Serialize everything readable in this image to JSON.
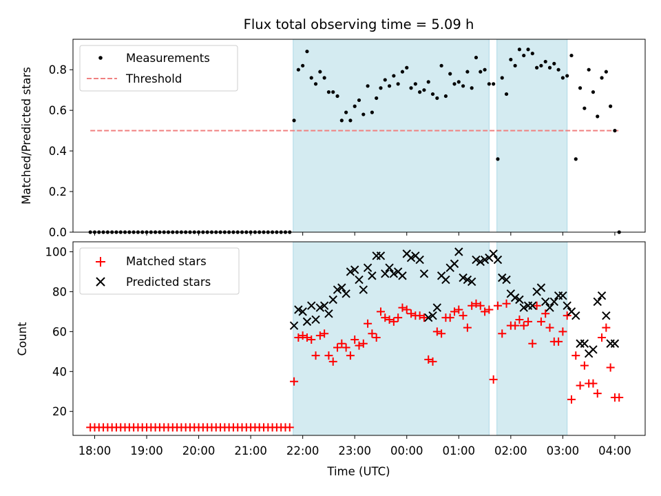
{
  "figure": {
    "title": "Flux total observing time = 5.09 h",
    "xlabel": "Time (UTC)"
  },
  "chart_data": [
    {
      "type": "scatter",
      "ylabel": "Matched/Predicted stars",
      "xlim": [
        "17:35",
        "04:35"
      ],
      "ylim": [
        0,
        0.95
      ],
      "yticks": [
        0.0,
        0.2,
        0.4,
        0.6,
        0.8
      ],
      "ytick_labels": [
        "0.0",
        "0.2",
        "0.4",
        "0.6",
        "0.8"
      ],
      "legend": {
        "position": "top-left",
        "entries": [
          "Measurements",
          "Threshold"
        ]
      },
      "colors": {
        "measurements": "#000000",
        "threshold": "#f08080",
        "shade": "#d4ebf1",
        "shade_edge": "#add8e6"
      },
      "shaded_ranges": [
        [
          "21:49",
          "01:35"
        ],
        [
          "01:44",
          "03:05"
        ]
      ],
      "threshold": {
        "name": "Threshold",
        "value": 0.5,
        "x": [
          "17:55",
          "04:05"
        ]
      },
      "series": [
        {
          "name": "Measurements",
          "x": [
            "17:55",
            "18:00",
            "18:05",
            "18:10",
            "18:15",
            "18:20",
            "18:25",
            "18:30",
            "18:35",
            "18:40",
            "18:45",
            "18:50",
            "18:55",
            "19:00",
            "19:05",
            "19:10",
            "19:15",
            "19:20",
            "19:25",
            "19:30",
            "19:35",
            "19:40",
            "19:45",
            "19:50",
            "19:55",
            "20:00",
            "20:05",
            "20:10",
            "20:15",
            "20:20",
            "20:25",
            "20:30",
            "20:35",
            "20:40",
            "20:45",
            "20:50",
            "20:55",
            "21:00",
            "21:05",
            "21:10",
            "21:15",
            "21:20",
            "21:25",
            "21:30",
            "21:35",
            "21:40",
            "21:45",
            "21:50",
            "21:55",
            "22:00",
            "22:05",
            "22:10",
            "22:15",
            "22:20",
            "22:25",
            "22:30",
            "22:35",
            "22:40",
            "22:45",
            "22:50",
            "22:55",
            "23:00",
            "23:05",
            "23:10",
            "23:15",
            "23:20",
            "23:25",
            "23:30",
            "23:35",
            "23:40",
            "23:45",
            "23:50",
            "23:55",
            "00:00",
            "00:05",
            "00:10",
            "00:15",
            "00:20",
            "00:25",
            "00:30",
            "00:35",
            "00:40",
            "00:45",
            "00:50",
            "00:55",
            "01:00",
            "01:05",
            "01:10",
            "01:15",
            "01:20",
            "01:25",
            "01:30",
            "01:35",
            "01:40",
            "01:45",
            "01:50",
            "01:55",
            "02:00",
            "02:05",
            "02:10",
            "02:15",
            "02:20",
            "02:25",
            "02:30",
            "02:35",
            "02:40",
            "02:45",
            "02:50",
            "02:55",
            "03:00",
            "03:05",
            "03:10",
            "03:15",
            "03:20",
            "03:25",
            "03:30",
            "03:35",
            "03:40",
            "03:45",
            "03:50",
            "03:55",
            "04:00",
            "04:05"
          ],
          "y": [
            0,
            0,
            0,
            0,
            0,
            0,
            0,
            0,
            0,
            0,
            0,
            0,
            0,
            0,
            0,
            0,
            0,
            0,
            0,
            0,
            0,
            0,
            0,
            0,
            0,
            0,
            0,
            0,
            0,
            0,
            0,
            0,
            0,
            0,
            0,
            0,
            0,
            0,
            0,
            0,
            0,
            0,
            0,
            0,
            0,
            0,
            0,
            0.55,
            0.8,
            0.82,
            0.89,
            0.76,
            0.73,
            0.79,
            0.76,
            0.69,
            0.69,
            0.67,
            0.55,
            0.59,
            0.55,
            0.62,
            0.65,
            0.58,
            0.72,
            0.59,
            0.66,
            0.71,
            0.75,
            0.72,
            0.77,
            0.73,
            0.79,
            0.81,
            0.71,
            0.73,
            0.69,
            0.7,
            0.74,
            0.68,
            0.66,
            0.82,
            0.67,
            0.78,
            0.73,
            0.74,
            0.72,
            0.79,
            0.71,
            0.86,
            0.79,
            0.8,
            0.73,
            0.73,
            0.36,
            0.76,
            0.68,
            0.85,
            0.82,
            0.9,
            0.87,
            0.9,
            0.88,
            0.81,
            0.82,
            0.84,
            0.81,
            0.83,
            0.8,
            0.76,
            0.77,
            0.87,
            0.36,
            0.71,
            0.61,
            0.8,
            0.69,
            0.57,
            0.76,
            0.79,
            0.62,
            0.5,
            0
          ]
        }
      ]
    },
    {
      "type": "scatter",
      "ylabel": "Count",
      "xlim": [
        "17:35",
        "04:35"
      ],
      "ylim": [
        8,
        105
      ],
      "yticks": [
        20,
        40,
        60,
        80,
        100
      ],
      "ytick_labels": [
        "20",
        "40",
        "60",
        "80",
        "100"
      ],
      "xticks": [
        "18:00",
        "19:00",
        "20:00",
        "21:00",
        "22:00",
        "23:00",
        "00:00",
        "01:00",
        "02:00",
        "03:00",
        "04:00"
      ],
      "xtick_labels": [
        "18:00",
        "19:00",
        "20:00",
        "21:00",
        "22:00",
        "23:00",
        "00:00",
        "01:00",
        "02:00",
        "03:00",
        "04:00"
      ],
      "legend": {
        "position": "top-left",
        "entries": [
          "Matched stars",
          "Predicted stars"
        ]
      },
      "colors": {
        "matched": "#ff0000",
        "predicted": "#000000"
      },
      "series": [
        {
          "name": "Matched stars",
          "x": [
            "17:55",
            "18:00",
            "18:05",
            "18:10",
            "18:15",
            "18:20",
            "18:25",
            "18:30",
            "18:35",
            "18:40",
            "18:45",
            "18:50",
            "18:55",
            "19:00",
            "19:05",
            "19:10",
            "19:15",
            "19:20",
            "19:25",
            "19:30",
            "19:35",
            "19:40",
            "19:45",
            "19:50",
            "19:55",
            "20:00",
            "20:05",
            "20:10",
            "20:15",
            "20:20",
            "20:25",
            "20:30",
            "20:35",
            "20:40",
            "20:45",
            "20:50",
            "20:55",
            "21:00",
            "21:05",
            "21:10",
            "21:15",
            "21:20",
            "21:25",
            "21:30",
            "21:35",
            "21:40",
            "21:45",
            "21:50",
            "21:55",
            "22:00",
            "22:05",
            "22:10",
            "22:15",
            "22:20",
            "22:25",
            "22:30",
            "22:35",
            "22:40",
            "22:45",
            "22:50",
            "22:55",
            "23:00",
            "23:05",
            "23:10",
            "23:15",
            "23:20",
            "23:25",
            "23:30",
            "23:35",
            "23:40",
            "23:45",
            "23:50",
            "23:55",
            "00:00",
            "00:05",
            "00:10",
            "00:15",
            "00:20",
            "00:25",
            "00:30",
            "00:35",
            "00:40",
            "00:45",
            "00:50",
            "00:55",
            "01:00",
            "01:05",
            "01:10",
            "01:15",
            "01:20",
            "01:25",
            "01:30",
            "01:35",
            "01:40",
            "01:45",
            "01:50",
            "01:55",
            "02:00",
            "02:05",
            "02:10",
            "02:15",
            "02:20",
            "02:25",
            "02:30",
            "02:35",
            "02:40",
            "02:45",
            "02:50",
            "02:55",
            "03:00",
            "03:05",
            "03:10",
            "03:15",
            "03:20",
            "03:25",
            "03:30",
            "03:35",
            "03:40",
            "03:45",
            "03:50",
            "03:55",
            "04:00",
            "04:05"
          ],
          "y": [
            12,
            12,
            12,
            12,
            12,
            12,
            12,
            12,
            12,
            12,
            12,
            12,
            12,
            12,
            12,
            12,
            12,
            12,
            12,
            12,
            12,
            12,
            12,
            12,
            12,
            12,
            12,
            12,
            12,
            12,
            12,
            12,
            12,
            12,
            12,
            12,
            12,
            12,
            12,
            12,
            12,
            12,
            12,
            12,
            12,
            12,
            12,
            35,
            57,
            58,
            57,
            56,
            48,
            58,
            59,
            48,
            45,
            52,
            54,
            52,
            48,
            56,
            53,
            54,
            64,
            59,
            57,
            70,
            67,
            66,
            65,
            67,
            72,
            71,
            69,
            68,
            68,
            67,
            46,
            45,
            60,
            59,
            67,
            67,
            70,
            71,
            68,
            62,
            73,
            74,
            73,
            70,
            71,
            36,
            73,
            59,
            74,
            63,
            63,
            66,
            63,
            65,
            54,
            73,
            65,
            69,
            62,
            55,
            55,
            60,
            68,
            26,
            48,
            33,
            43,
            34,
            34,
            29,
            57,
            62,
            42,
            27,
            27
          ]
        },
        {
          "name": "Predicted stars",
          "x": [
            "21:50",
            "21:55",
            "22:00",
            "22:05",
            "22:10",
            "22:15",
            "22:20",
            "22:25",
            "22:30",
            "22:35",
            "22:40",
            "22:45",
            "22:50",
            "22:55",
            "23:00",
            "23:05",
            "23:10",
            "23:15",
            "23:20",
            "23:25",
            "23:30",
            "23:35",
            "23:40",
            "23:45",
            "23:50",
            "23:55",
            "00:00",
            "00:05",
            "00:10",
            "00:15",
            "00:20",
            "00:25",
            "00:30",
            "00:35",
            "00:40",
            "00:45",
            "00:50",
            "00:55",
            "01:00",
            "01:05",
            "01:10",
            "01:15",
            "01:20",
            "01:25",
            "01:30",
            "01:35",
            "01:40",
            "01:45",
            "01:50",
            "01:55",
            "02:00",
            "02:05",
            "02:10",
            "02:15",
            "02:20",
            "02:25",
            "02:30",
            "02:35",
            "02:40",
            "02:45",
            "02:50",
            "02:55",
            "03:00",
            "03:05",
            "03:10",
            "03:15",
            "03:20",
            "03:25",
            "03:30",
            "03:35",
            "03:40",
            "03:45",
            "03:50",
            "03:55",
            "04:00"
          ],
          "y": [
            63,
            71,
            70,
            65,
            73,
            66,
            72,
            73,
            69,
            76,
            81,
            82,
            79,
            90,
            91,
            86,
            81,
            92,
            88,
            98,
            98,
            89,
            92,
            89,
            90,
            88,
            99,
            97,
            98,
            96,
            89,
            67,
            68,
            72,
            88,
            86,
            92,
            94,
            100,
            87,
            86,
            85,
            96,
            95,
            96,
            97,
            99,
            96,
            87,
            86,
            79,
            77,
            76,
            72,
            73,
            73,
            80,
            82,
            75,
            72,
            75,
            78,
            78,
            73,
            70,
            68,
            54,
            54,
            49,
            51,
            75,
            78,
            68,
            54,
            54
          ]
        }
      ]
    }
  ]
}
